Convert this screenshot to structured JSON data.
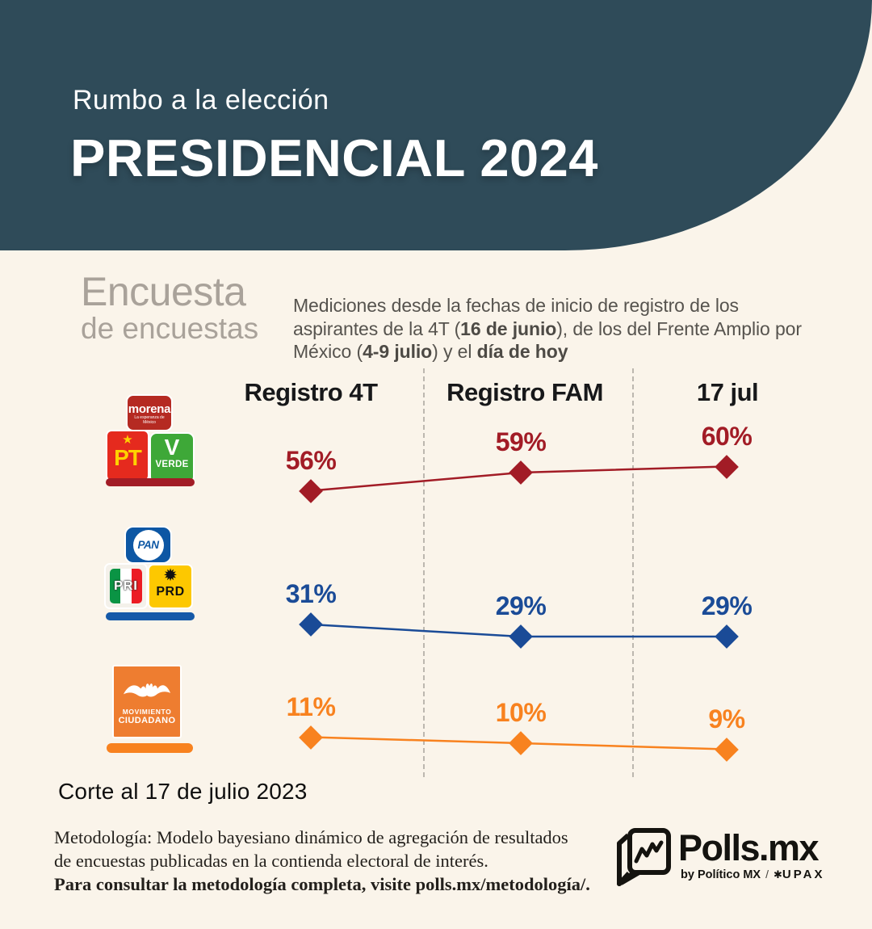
{
  "header": {
    "kicker": "Rumbo a la elección",
    "title": "PRESIDENCIAL 2024"
  },
  "intro": {
    "label_line1": "Encuesta",
    "label_line2": "de encuestas",
    "desc_p1": "Mediciones desde la fechas de inicio de registro de los aspirantes de la 4T (",
    "desc_b1": "16 de junio",
    "desc_p2": "), de los del Frente Amplio por México (",
    "desc_b2": "4-9 julio",
    "desc_p3": ") y el ",
    "desc_b3": "día de hoy"
  },
  "chart_data": {
    "type": "line",
    "title": "Encuesta de encuestas - Rumbo a la elección presidencial 2024",
    "categories": [
      "Registro 4T",
      "Registro FAM",
      "17 jul"
    ],
    "series": [
      {
        "name": "Morena-PT-Verde (4T)",
        "color": "#a21c26",
        "values": [
          56,
          59,
          60
        ],
        "labels": [
          "56%",
          "59%",
          "60%"
        ]
      },
      {
        "name": "PAN-PRI-PRD (Frente Amplio por México)",
        "color": "#1a4b97",
        "values": [
          31,
          29,
          29
        ],
        "labels": [
          "31%",
          "29%",
          "29%"
        ]
      },
      {
        "name": "Movimiento Ciudadano",
        "color": "#f8821f",
        "values": [
          11,
          10,
          9
        ],
        "labels": [
          "11%",
          "10%",
          "9%"
        ]
      }
    ],
    "value_suffix": "%",
    "marker": "diamond",
    "grid": "dashed vertical column separators",
    "legend_position": "party logos at left of each series row"
  },
  "logos": {
    "morena_text": "morena",
    "morena_tagline": "La esperanza de México",
    "pt_text": "PT",
    "verde_v": "V",
    "verde_text": "VERDE",
    "pan_text": "PAN",
    "pri_text": "PRI",
    "prd_text": "PRD",
    "mc_line1": "MOVIMIENTO",
    "mc_line2": "CIUDADANO"
  },
  "footer": {
    "cutoff": "Corte al 17 de julio 2023",
    "methodology_line1": "Metodología: Modelo bayesiano dinámico de agregación de resultados",
    "methodology_line2": "de encuestas publicadas en la contienda electoral de interés.",
    "methodology_bold": "Para consultar la metodología completa, visite polls.mx/metodología/.",
    "brand_name": "Polls.mx",
    "brand_byline": "by Político MX",
    "brand_separator": "/",
    "brand_partner": "UPAX"
  },
  "colors": {
    "background": "#faf4ea",
    "header_bg": "#2f4b59",
    "series_red": "#a21c26",
    "series_blue": "#1a4b97",
    "series_orange": "#f8821f",
    "muted_label": "#a9a29a",
    "body_text": "#56534e"
  }
}
